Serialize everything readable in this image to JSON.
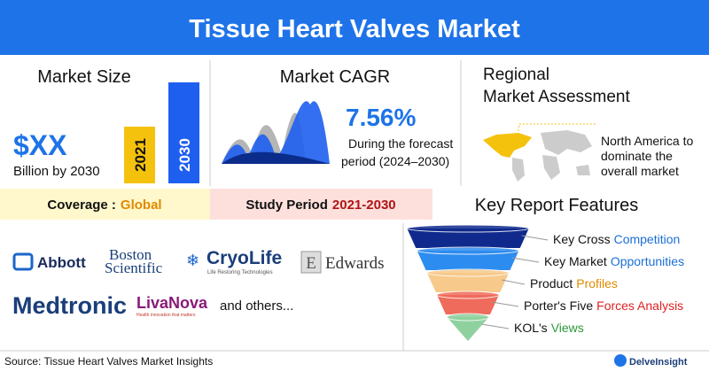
{
  "header": {
    "title": "Tissue Heart Valves Market"
  },
  "market_size": {
    "title": "Market Size",
    "value": "$XX",
    "unit": "Billion by 2030",
    "bars": [
      "2021",
      "2030"
    ]
  },
  "cagr": {
    "title": "Market CAGR",
    "value": "7.56%",
    "lines": [
      "During the forecast",
      "period (2024–2030)"
    ]
  },
  "regional": {
    "title_lines": [
      "Regional",
      "Market Assessment"
    ],
    "note_lines": [
      "North America to",
      "dominate the",
      "overall market"
    ]
  },
  "coverage": {
    "label": "Coverage :",
    "value": "Global"
  },
  "study_period": {
    "label": "Study Period",
    "value": "2021-2030"
  },
  "features": {
    "title": "Key Report Features",
    "items": [
      {
        "text": "Key Cross",
        "highlight": "Competition"
      },
      {
        "text": "Key Market",
        "highlight": "Opportunities"
      },
      {
        "text": "Product",
        "highlight": "Profiles"
      },
      {
        "text": "Porter's Five",
        "highlight": "Forces Analysis"
      },
      {
        "text": "KOL's",
        "highlight": "Views"
      }
    ]
  },
  "companies": {
    "logos": [
      {
        "name": "Abbott"
      },
      {
        "name": "Boston",
        "line2": "Scientific"
      },
      {
        "name": "CryoLife",
        "tagline": "Life Restoring Technologies"
      },
      {
        "name": "Edwards",
        "mark": "E"
      },
      {
        "name": "Medtronic"
      },
      {
        "name": "LivaNova",
        "tagline": "Health innovation that matters"
      }
    ],
    "others": "and others..."
  },
  "footer": {
    "source": "Source: Tissue Heart Valves Market Insights",
    "brand": "DelveInsight"
  }
}
